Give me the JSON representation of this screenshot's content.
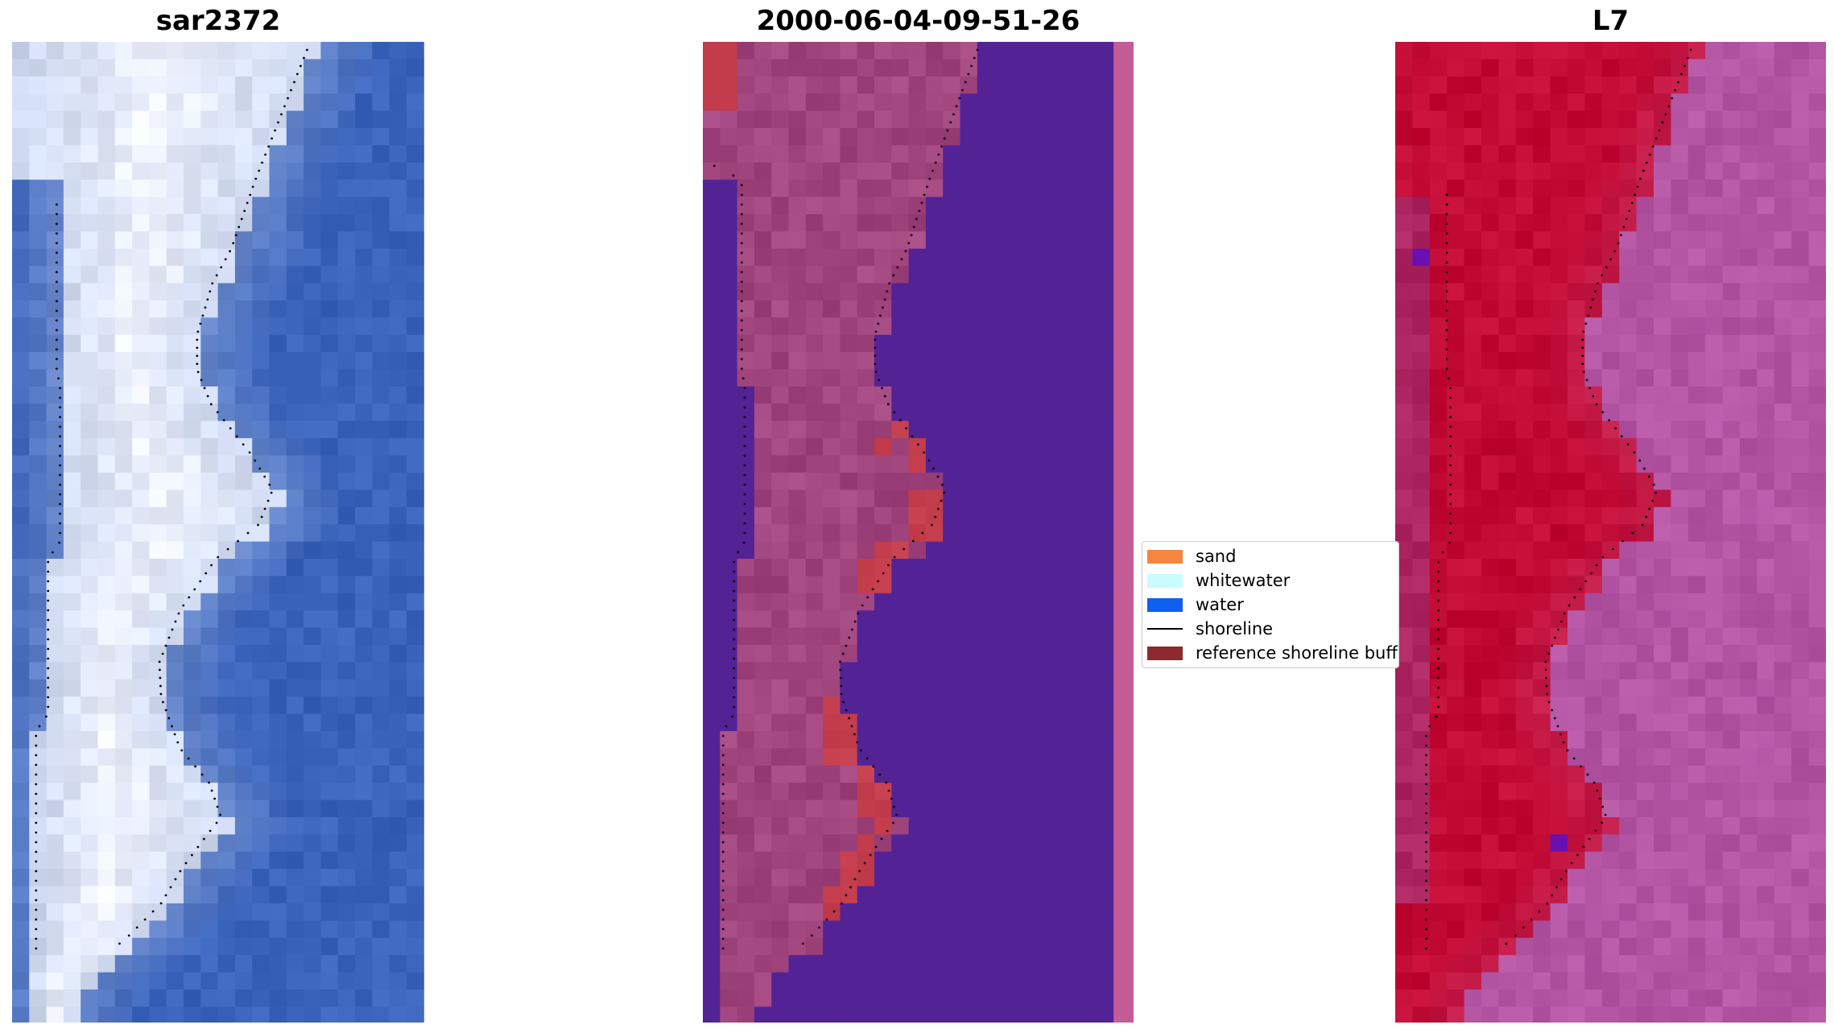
{
  "panels": [
    {
      "title": "sar2372"
    },
    {
      "title": "2000-06-04-09-51-26"
    },
    {
      "title": "L7"
    }
  ],
  "legend": {
    "items": [
      {
        "label": "sand",
        "color": "#f5853f",
        "kind": "patch"
      },
      {
        "label": "whitewater",
        "color": "#c8fcff",
        "kind": "patch"
      },
      {
        "label": "water",
        "color": "#1060f0",
        "kind": "patch"
      },
      {
        "label": "shoreline",
        "color": "#000000",
        "kind": "line"
      },
      {
        "label": "reference shoreline buff",
        "color": "#8b2a2f",
        "kind": "patch"
      }
    ]
  },
  "colors": {
    "rgb_water": "#3a63bb",
    "rgb_beach": "#c6d2ec",
    "classified_water": "#532396",
    "classified_land": "#a0457e",
    "classified_buffer": "#c23c4c",
    "classified_edge": "#c45c97",
    "ndwi_land": "#c10a34",
    "ndwi_water": "#b355a3"
  }
}
